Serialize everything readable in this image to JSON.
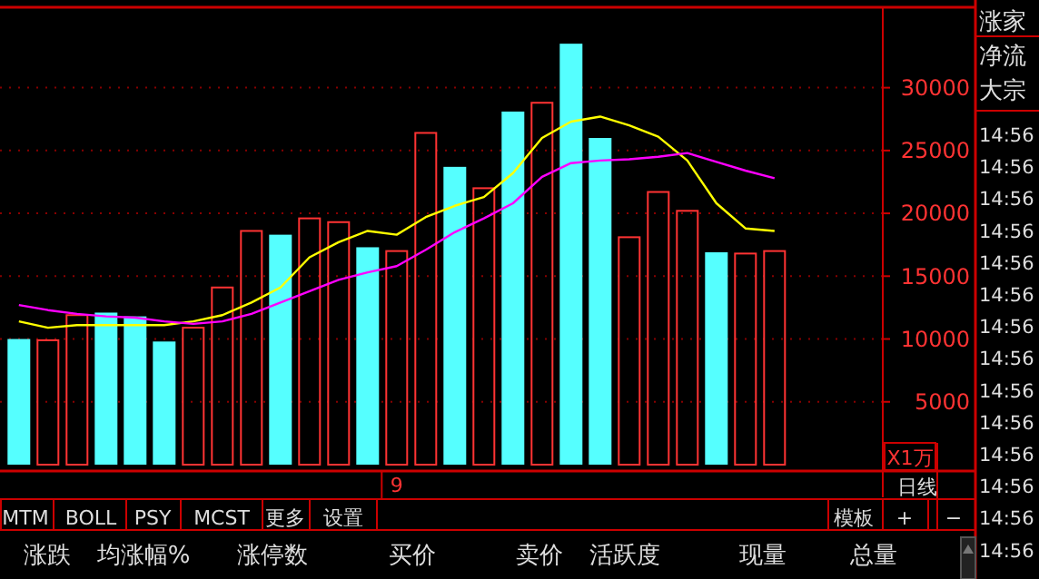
{
  "chart_data": {
    "type": "bar",
    "ylabel": "X1万",
    "categories": [
      null,
      null,
      null,
      null,
      null,
      null,
      null,
      null,
      null,
      null,
      null,
      null,
      null,
      "9",
      null,
      null,
      null,
      null,
      null,
      null,
      null,
      null,
      null,
      null,
      null,
      null,
      null
    ],
    "series": [
      {
        "color": "#ff3333",
        "values": [
          null,
          9900,
          11900,
          null,
          null,
          null,
          10900,
          14100,
          18600,
          null,
          19600,
          19300,
          null,
          17000,
          26400,
          null,
          22000,
          null,
          28800,
          null,
          null,
          18100,
          21700,
          20200,
          null,
          16800,
          17000
        ]
      },
      {
        "color": "#55ffff",
        "values": [
          10000,
          null,
          null,
          12100,
          11800,
          9800,
          null,
          null,
          null,
          18300,
          null,
          null,
          17300,
          null,
          null,
          23700,
          null,
          28100,
          null,
          33500,
          26000,
          null,
          null,
          null,
          16900,
          null,
          null
        ]
      },
      {
        "type": "line",
        "color": "#ffff00",
        "values": [
          11400,
          10900,
          11100,
          11100,
          11100,
          11100,
          11400,
          11900,
          12900,
          14100,
          16500,
          17700,
          18600,
          18300,
          19700,
          20600,
          21300,
          23200,
          26000,
          27300,
          27700,
          27000,
          26100,
          24200,
          20800,
          18800,
          18600
        ]
      },
      {
        "type": "line",
        "color": "#ff00ff",
        "values": [
          12700,
          12300,
          12000,
          11800,
          11700,
          11400,
          11200,
          11400,
          12000,
          12900,
          13800,
          14700,
          15300,
          15800,
          17100,
          18500,
          19600,
          20800,
          22900,
          24000,
          24200,
          24300,
          24500,
          24800,
          24100,
          23400,
          22800
        ]
      }
    ],
    "ylim": [
      0,
      36400
    ],
    "yticks": [
      5000,
      10000,
      15000,
      20000,
      25000,
      30000
    ],
    "grid": "y",
    "marker": "none",
    "line_style": "solid",
    "annotations": [
      "日线",
      "涨家",
      "净流",
      "大宗",
      "14:56",
      "14:56",
      "14:56",
      "14:56",
      "14:56",
      "14:56",
      "14:56",
      "14:56",
      "14:56",
      "14:56",
      "14:56",
      "14:56",
      "14:56",
      "14:56",
      "MTM",
      "BOLL",
      "PSY",
      "MCST",
      "更多",
      "设置",
      "模板",
      "+",
      "−",
      "涨跌",
      "均涨幅%",
      "涨停数",
      "买价",
      "卖价",
      "活跃度",
      "现量",
      "总量"
    ]
  }
}
